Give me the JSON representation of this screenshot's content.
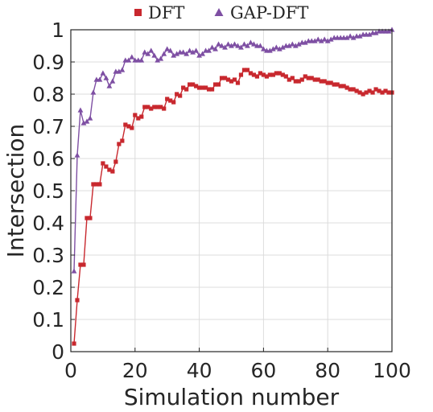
{
  "chart_data": {
    "type": "line",
    "xlabel": "Simulation number",
    "ylabel": "Intersection",
    "xlim": [
      0,
      100
    ],
    "ylim": [
      0,
      1
    ],
    "x_ticks": [
      "0",
      "20",
      "40",
      "60",
      "80",
      "100"
    ],
    "y_ticks": [
      "0",
      "0.1",
      "0.2",
      "0.3",
      "0.4",
      "0.5",
      "0.6",
      "0.7",
      "0.8",
      "0.9",
      "1"
    ],
    "grid": true,
    "legend_position": "top",
    "x": [
      1,
      2,
      3,
      4,
      5,
      6,
      7,
      8,
      9,
      10,
      11,
      12,
      13,
      14,
      15,
      16,
      17,
      18,
      19,
      20,
      21,
      22,
      23,
      24,
      25,
      26,
      27,
      28,
      29,
      30,
      31,
      32,
      33,
      34,
      35,
      36,
      37,
      38,
      39,
      40,
      41,
      42,
      43,
      44,
      45,
      46,
      47,
      48,
      49,
      50,
      51,
      52,
      53,
      54,
      55,
      56,
      57,
      58,
      59,
      60,
      61,
      62,
      63,
      64,
      65,
      66,
      67,
      68,
      69,
      70,
      71,
      72,
      73,
      74,
      75,
      76,
      77,
      78,
      79,
      80,
      81,
      82,
      83,
      84,
      85,
      86,
      87,
      88,
      89,
      90,
      91,
      92,
      93,
      94,
      95,
      96,
      97,
      98,
      99,
      100
    ],
    "series": [
      {
        "name": "DFT",
        "color": "#c8282e",
        "marker": "square",
        "values": [
          0.025,
          0.16,
          0.27,
          0.27,
          0.415,
          0.415,
          0.52,
          0.52,
          0.52,
          0.585,
          0.575,
          0.565,
          0.56,
          0.59,
          0.645,
          0.655,
          0.705,
          0.7,
          0.695,
          0.735,
          0.725,
          0.73,
          0.76,
          0.76,
          0.755,
          0.76,
          0.76,
          0.76,
          0.755,
          0.785,
          0.78,
          0.775,
          0.8,
          0.795,
          0.82,
          0.815,
          0.83,
          0.83,
          0.825,
          0.82,
          0.82,
          0.82,
          0.815,
          0.815,
          0.83,
          0.83,
          0.85,
          0.85,
          0.845,
          0.84,
          0.845,
          0.835,
          0.86,
          0.875,
          0.875,
          0.865,
          0.86,
          0.855,
          0.865,
          0.86,
          0.855,
          0.86,
          0.86,
          0.865,
          0.865,
          0.86,
          0.855,
          0.845,
          0.85,
          0.84,
          0.84,
          0.845,
          0.855,
          0.85,
          0.85,
          0.845,
          0.845,
          0.84,
          0.84,
          0.835,
          0.835,
          0.83,
          0.83,
          0.825,
          0.825,
          0.82,
          0.815,
          0.815,
          0.81,
          0.805,
          0.8,
          0.805,
          0.81,
          0.805,
          0.815,
          0.81,
          0.805,
          0.81,
          0.805,
          0.805
        ]
      },
      {
        "name": "GAP-DFT",
        "color": "#7e4fa3",
        "marker": "triangle",
        "values": [
          0.25,
          0.61,
          0.75,
          0.71,
          0.715,
          0.725,
          0.805,
          0.845,
          0.845,
          0.865,
          0.85,
          0.825,
          0.84,
          0.87,
          0.87,
          0.875,
          0.905,
          0.905,
          0.915,
          0.905,
          0.905,
          0.905,
          0.93,
          0.925,
          0.935,
          0.92,
          0.905,
          0.91,
          0.925,
          0.94,
          0.935,
          0.92,
          0.925,
          0.93,
          0.93,
          0.925,
          0.935,
          0.93,
          0.935,
          0.92,
          0.925,
          0.935,
          0.935,
          0.945,
          0.94,
          0.955,
          0.95,
          0.945,
          0.955,
          0.95,
          0.955,
          0.95,
          0.945,
          0.955,
          0.95,
          0.96,
          0.955,
          0.95,
          0.95,
          0.94,
          0.935,
          0.935,
          0.94,
          0.945,
          0.94,
          0.945,
          0.95,
          0.95,
          0.955,
          0.95,
          0.955,
          0.96,
          0.96,
          0.965,
          0.965,
          0.965,
          0.97,
          0.965,
          0.97,
          0.965,
          0.97,
          0.975,
          0.975,
          0.975,
          0.975,
          0.975,
          0.98,
          0.975,
          0.98,
          0.98,
          0.985,
          0.985,
          0.985,
          0.99,
          0.99,
          0.995,
          0.995,
          0.995,
          0.995,
          1.0
        ]
      }
    ]
  }
}
